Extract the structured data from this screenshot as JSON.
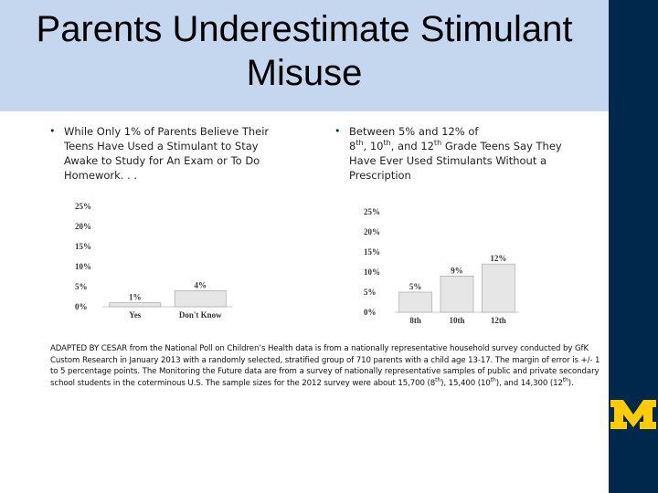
{
  "slide": {
    "title_line1": "Parents Underestimate Stimulant",
    "title_line2": "Misuse"
  },
  "left_bullet": {
    "marker": "•",
    "text": "While Only 1% of Parents Believe Their Teens Have Used a Stimulant to Stay Awake to Study for An Exam or To Do Homework. . ."
  },
  "right_bullet": {
    "marker": "•",
    "text_prefix": "Between 5% and 12% of",
    "grades": [
      "8",
      "th",
      ", 10",
      "th",
      ", and 12",
      "th",
      " Grade Teens Say They"
    ],
    "text_suffix": "Have Ever Used Stimulants Without a",
    "text_end": "Prescription"
  },
  "chart_data": [
    {
      "type": "bar",
      "categories": [
        "Yes",
        "Don't Know"
      ],
      "values": [
        1,
        4
      ],
      "data_labels": [
        "1%",
        "4%"
      ],
      "yticks": [
        "0%",
        "5%",
        "10%",
        "15%",
        "20%",
        "25%"
      ],
      "ylim": [
        0,
        25
      ],
      "grid": false
    },
    {
      "type": "bar",
      "categories": [
        "8th",
        "10th",
        "12th"
      ],
      "values": [
        5,
        9,
        12
      ],
      "data_labels": [
        "5%",
        "9%",
        "12%"
      ],
      "yticks": [
        "0%",
        "5%",
        "10%",
        "15%",
        "20%",
        "25%"
      ],
      "ylim": [
        0,
        25
      ],
      "grid": false
    }
  ],
  "footnote": {
    "part1": "ADAPTED BY CESAR from the National Poll on Children’s Health data is from a nationally representative household survey conducted by GfK Custom Research in January 2013 with a randomly selected, stratified group of 710 parents with a child age 13-17. The margin of error is +/- 1 to 5 percentage points. The Monitoring the Future data are from a survey of nationally representative samples of public and private secondary school students in the coterminous U.S. The sample sizes for the 2012 survey were about 15,700 (8",
    "sup1": "th",
    "part2": "), 15,400 (10",
    "sup2": "th",
    "part3": "), and 14,300 (12",
    "sup3": "th",
    "part4": ")."
  },
  "logo": {
    "letter": "M",
    "color": "#ffcb05"
  },
  "colors": {
    "rail": "#00274c",
    "title_band": "#c5d7ef",
    "bar_fill": "#e6e6e6",
    "bar_stroke": "#b0b0b0"
  }
}
